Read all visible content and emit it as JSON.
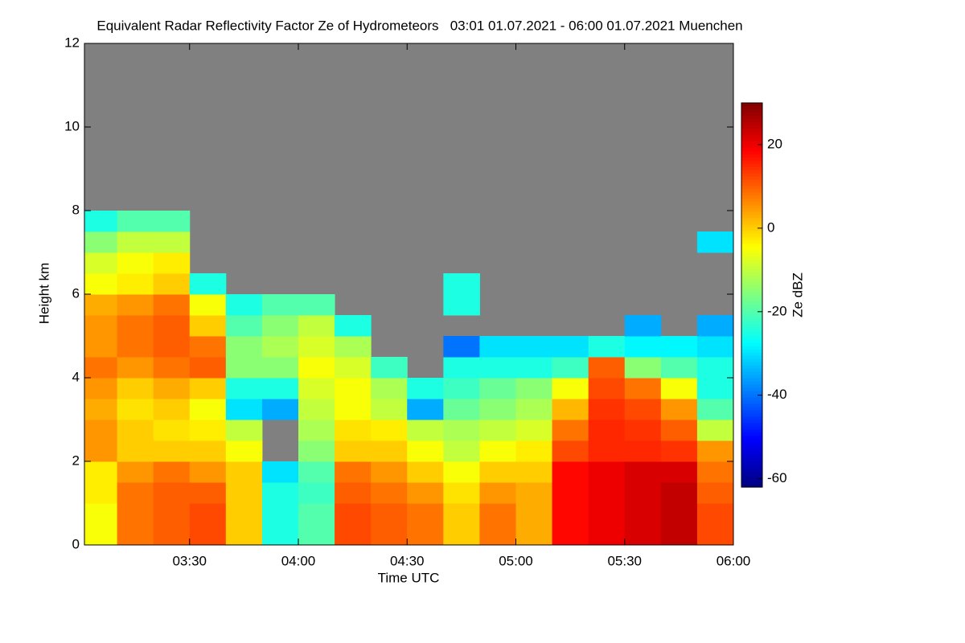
{
  "chart_data": {
    "type": "heatmap",
    "title": "Equivalent Radar Reflectivity Factor Ze of Hydrometeors   03:01 01.07.2021 - 06:00 01.07.2021 Muenchen",
    "xlabel": "Time UTC",
    "ylabel": "Height km",
    "colorbar_label": "Ze dBZ",
    "colormap": "jet",
    "missing_color": "#808080",
    "xlim": [
      181,
      360
    ],
    "xticks": [
      {
        "value": 210,
        "label": "03:30"
      },
      {
        "value": 240,
        "label": "04:00"
      },
      {
        "value": 270,
        "label": "04:30"
      },
      {
        "value": 300,
        "label": "05:00"
      },
      {
        "value": 330,
        "label": "05:30"
      },
      {
        "value": 360,
        "label": "06:00"
      }
    ],
    "ylim": [
      0,
      12
    ],
    "yticks": [
      0,
      2,
      4,
      6,
      8,
      10,
      12
    ],
    "clim": [
      -62,
      30
    ],
    "cticks": [
      -60,
      -40,
      -20,
      0,
      20
    ],
    "x_bins": [
      181,
      190,
      200,
      210,
      220,
      230,
      240,
      250,
      260,
      270,
      280,
      290,
      300,
      310,
      320,
      330,
      340,
      350,
      360
    ],
    "y_bins": [
      0,
      0.5,
      1,
      1.5,
      2,
      2.5,
      3,
      3.5,
      4,
      4.5,
      5,
      5.5,
      6,
      6.5,
      7,
      7.5,
      8
    ],
    "z": [
      [
        -5,
        -5,
        -3,
        -3,
        5,
        5,
        3,
        5,
        8,
        5,
        5,
        3,
        -5,
        -8,
        -15,
        -25
      ],
      [
        8,
        8,
        8,
        5,
        0,
        0,
        -2,
        0,
        5,
        8,
        8,
        5,
        -3,
        -5,
        -10,
        -20
      ],
      [
        10,
        10,
        10,
        8,
        0,
        -2,
        0,
        3,
        8,
        10,
        10,
        8,
        0,
        -3,
        -10,
        -20
      ],
      [
        12,
        12,
        10,
        5,
        0,
        -3,
        -5,
        0,
        10,
        8,
        0,
        -5,
        -25,
        null,
        null,
        null
      ],
      [
        0,
        0,
        0,
        0,
        -5,
        -10,
        -30,
        -25,
        -15,
        -15,
        -20,
        -25,
        null,
        null,
        null,
        null
      ],
      [
        -25,
        -25,
        -25,
        -30,
        null,
        null,
        -35,
        -25,
        -15,
        -12,
        -15,
        -20,
        null,
        null,
        null,
        null
      ],
      [
        -20,
        -20,
        -22,
        -20,
        -15,
        -12,
        -10,
        -8,
        -5,
        -8,
        -10,
        -20,
        null,
        null,
        null,
        null
      ],
      [
        12,
        12,
        10,
        8,
        0,
        -2,
        -5,
        -5,
        -8,
        -12,
        -25,
        null,
        null,
        null,
        null,
        null
      ],
      [
        10,
        10,
        8,
        5,
        0,
        -3,
        -10,
        -12,
        -22,
        null,
        null,
        null,
        null,
        null,
        null,
        null
      ],
      [
        8,
        8,
        5,
        0,
        -5,
        -10,
        -35,
        -25,
        null,
        null,
        null,
        null,
        null,
        null,
        null,
        null
      ],
      [
        0,
        0,
        -2,
        -5,
        -10,
        -12,
        -18,
        -22,
        -25,
        -40,
        null,
        -25,
        -25,
        null,
        null,
        null
      ],
      [
        8,
        8,
        5,
        0,
        -5,
        -10,
        -15,
        -18,
        -25,
        -30,
        null,
        null,
        null,
        null,
        null,
        null
      ],
      [
        3,
        3,
        3,
        0,
        -3,
        -8,
        -12,
        -15,
        -25,
        -30,
        null,
        null,
        null,
        null,
        null,
        null
      ],
      [
        18,
        18,
        18,
        18,
        12,
        8,
        2,
        -5,
        -22,
        -30,
        null,
        null,
        null,
        null,
        null,
        null
      ],
      [
        20,
        20,
        20,
        20,
        15,
        15,
        14,
        12,
        10,
        -25,
        null,
        null,
        null,
        null,
        null,
        null
      ],
      [
        22,
        22,
        22,
        22,
        15,
        14,
        12,
        8,
        -15,
        -28,
        -35,
        null,
        null,
        null,
        null,
        null
      ],
      [
        24,
        24,
        24,
        22,
        14,
        10,
        5,
        -5,
        -20,
        -28,
        null,
        null,
        null,
        null,
        null,
        null
      ],
      [
        12,
        12,
        10,
        8,
        5,
        -10,
        -20,
        -25,
        -25,
        -30,
        -35,
        null,
        null,
        null,
        -30,
        null
      ]
    ]
  }
}
